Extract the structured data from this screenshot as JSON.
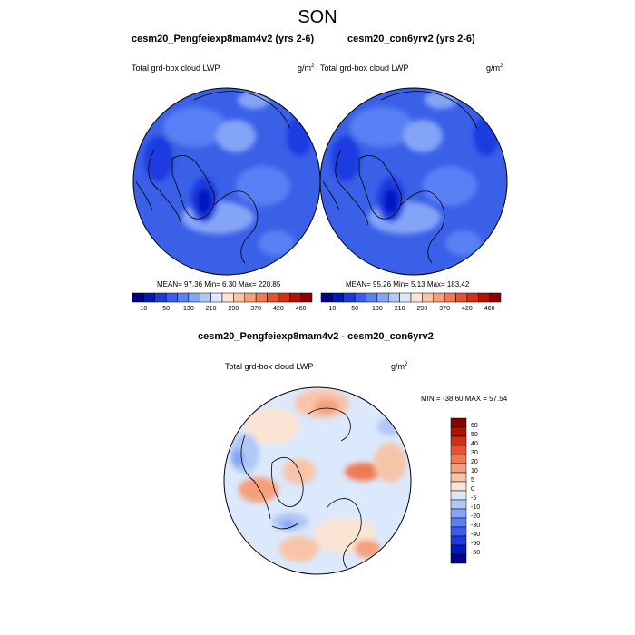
{
  "season": "SON",
  "panels": [
    {
      "title": "cesm20_Pengfeiexp8mam4v2 (yrs 2-6)",
      "left_label": "Total grd-box cloud LWP",
      "units": "g/m",
      "units_exp": "2",
      "stats": "MEAN=  97.36  Min=   6.30  Max= 220.85"
    },
    {
      "title": "cesm20_con6yrv2 (yrs 2-6)",
      "left_label": "Total grd-box cloud LWP",
      "units": "g/m",
      "units_exp": "2",
      "stats": "MEAN=  95.26  Min=   5.13  Max= 183.42"
    },
    {
      "title": "cesm20_Pengfeiexp8mam4v2 - cesm20_con6yrv2",
      "left_label": "Total grd-box cloud LWP",
      "units": "g/m",
      "units_exp": "2",
      "stats": "MIN = -38.60 MAX =  57.54"
    }
  ],
  "abs_colorbar": {
    "labels": [
      "10",
      "50",
      "130",
      "210",
      "290",
      "370",
      "420",
      "460"
    ],
    "colors": [
      "#00008b",
      "#0018c0",
      "#1c3ae0",
      "#3a5cf0",
      "#5a80f5",
      "#84a4f7",
      "#b0c8f8",
      "#dce8fb",
      "#fbe4d4",
      "#f8c4a8",
      "#f4a07c",
      "#ef7a52",
      "#e6522e",
      "#d22e14",
      "#b01204",
      "#880000"
    ]
  },
  "diff_colorbar": {
    "labels": [
      "60",
      "50",
      "40",
      "30",
      "20",
      "10",
      "5",
      "0",
      "-5",
      "-10",
      "-20",
      "-30",
      "-40",
      "-50",
      "-60"
    ],
    "colors": [
      "#880000",
      "#b01204",
      "#d22e14",
      "#e6522e",
      "#ef7a52",
      "#f4a07c",
      "#f8c4a8",
      "#fbe4d4",
      "#dce8fb",
      "#b0c8f8",
      "#84a4f7",
      "#5a80f5",
      "#3a5cf0",
      "#1c3ae0",
      "#0018c0",
      "#00008b"
    ]
  },
  "map_colors": {
    "abs_base": "#3a60e8",
    "abs_light": "#5a80f5",
    "abs_dark": "#1c3ae0",
    "abs_darker": "#0018c0",
    "abs_pale": "#84a4f7",
    "diff_base": "#dce8fb",
    "diff_warm1": "#fbe4d4",
    "diff_warm2": "#f8c4a8",
    "diff_warm3": "#f4a07c",
    "diff_warm4": "#ef7a52",
    "diff_cool1": "#b0c8f8",
    "diff_cool2": "#84a4f7"
  }
}
